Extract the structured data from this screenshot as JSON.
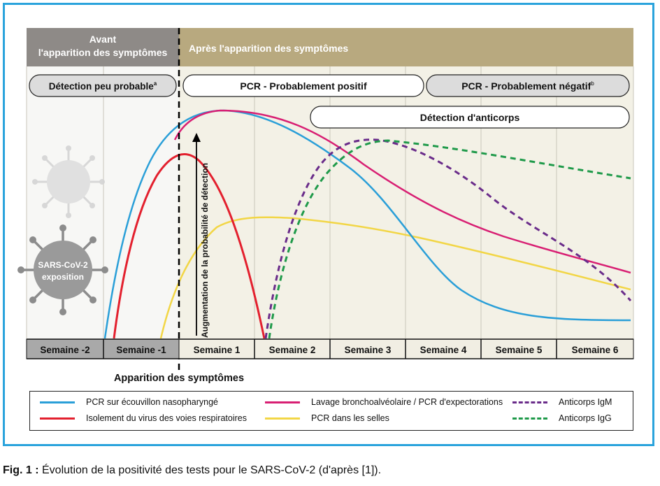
{
  "header": {
    "before": "Avant l'apparition des symptômes",
    "before_line1": "Avant",
    "before_line2": "l'apparition des symptômes",
    "after": "Après l'apparition des symptômes"
  },
  "pills": {
    "detection_low": "Détection peu probable",
    "detection_low_sup": "a",
    "pcr_pos_bold": "PCR",
    "pcr_pos_rest": " - Probablement positif",
    "pcr_neg_bold": "PCR",
    "pcr_neg_rest": " - Probablement négatif",
    "pcr_neg_sup": "b",
    "antibody": "Détection d'anticorps"
  },
  "virus_label_line1": "SARS-CoV-2",
  "virus_label_line2": "exposition",
  "arrow_label": "Augmentation de la probabilité de détection",
  "weeks": [
    "Semaine -2",
    "Semaine -1",
    "Semaine 1",
    "Semaine 2",
    "Semaine 3",
    "Semaine 4",
    "Semaine 5",
    "Semaine 6"
  ],
  "onset_label": "Apparition des symptômes",
  "legend": [
    {
      "label": "PCR sur écouvillon nasopharyngé",
      "color": "#2a9fd8",
      "dashed": false
    },
    {
      "label": "Isolement du virus des voies respiratoires",
      "color": "#e3202e",
      "dashed": false
    },
    {
      "label": "Lavage bronchoalvéolaire / PCR d'expectorations",
      "color": "#d81f73",
      "dashed": false
    },
    {
      "label": "PCR dans les selles",
      "color": "#f2d646",
      "dashed": false
    },
    {
      "label": "Anticorps IgM",
      "color": "#6a2c8a",
      "dashed": true
    },
    {
      "label": "Anticorps IgG",
      "color": "#1f9a4a",
      "dashed": true
    }
  ],
  "caption_bold": "Fig. 1 :",
  "caption_text": " Évolution de la positivité des tests pour le SARS-CoV-2 (d'après [1]).",
  "colors": {
    "header_gray": "#8e8a87",
    "header_tan": "#b8a97f",
    "pill_gray": "#dcdcdc",
    "week_bg_light": "#f1eee3",
    "week_bg_dark": "#a9a9a9",
    "border_blue": "#2aa3dc"
  }
}
